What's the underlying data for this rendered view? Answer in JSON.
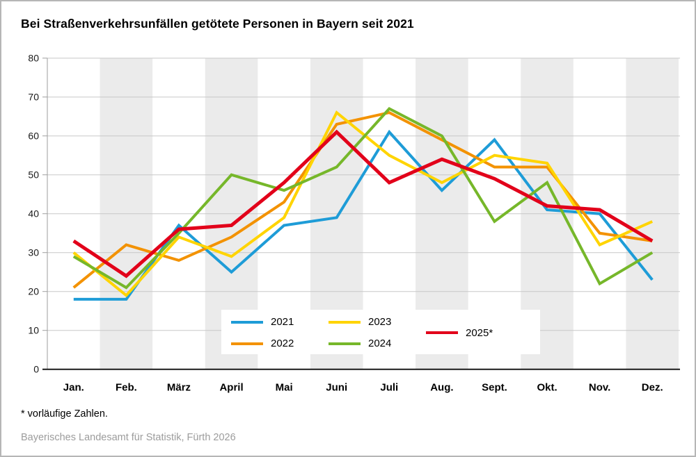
{
  "chart_data": {
    "type": "line",
    "title": "Bei Straßenverkehrsunfällen getötete Personen in Bayern seit 2021",
    "categories": [
      "Jan.",
      "Feb.",
      "März",
      "April",
      "Mai",
      "Juni",
      "Juli",
      "Aug.",
      "Sept.",
      "Okt.",
      "Nov.",
      "Dez."
    ],
    "ylim": [
      0,
      80
    ],
    "ytick_step": 10,
    "grid": "horizontal gridlines, alternating vertical month bands",
    "legend_position": "inside bottom center, white box, 3 columns",
    "series": [
      {
        "name": "2021",
        "color": "#1e9cd7",
        "values": [
          18,
          18,
          37,
          25,
          37,
          39,
          61,
          46,
          59,
          41,
          40,
          23
        ]
      },
      {
        "name": "2022",
        "color": "#f39200",
        "values": [
          21,
          32,
          28,
          34,
          43,
          63,
          66,
          59,
          52,
          52,
          35,
          33
        ]
      },
      {
        "name": "2023",
        "color": "#ffd400",
        "values": [
          30,
          19,
          34,
          29,
          39,
          66,
          55,
          48,
          55,
          53,
          32,
          38
        ]
      },
      {
        "name": "2024",
        "color": "#76b72a",
        "values": [
          29,
          21,
          35,
          50,
          46,
          52,
          67,
          60,
          38,
          48,
          22,
          30
        ]
      },
      {
        "name": "2025*",
        "color": "#e2001a",
        "values": [
          33,
          24,
          36,
          37,
          48,
          61,
          48,
          54,
          49,
          42,
          41,
          33
        ]
      }
    ],
    "footnote": "* vorläufige Zahlen.",
    "source": "Bayerisches Landesamt für Statistik, Fürth 2026",
    "colors": {
      "band": "#ebebeb",
      "gridline": "#c8c8c8",
      "axis": "#9e9e9e",
      "baseline": "#1a1a1a"
    }
  }
}
